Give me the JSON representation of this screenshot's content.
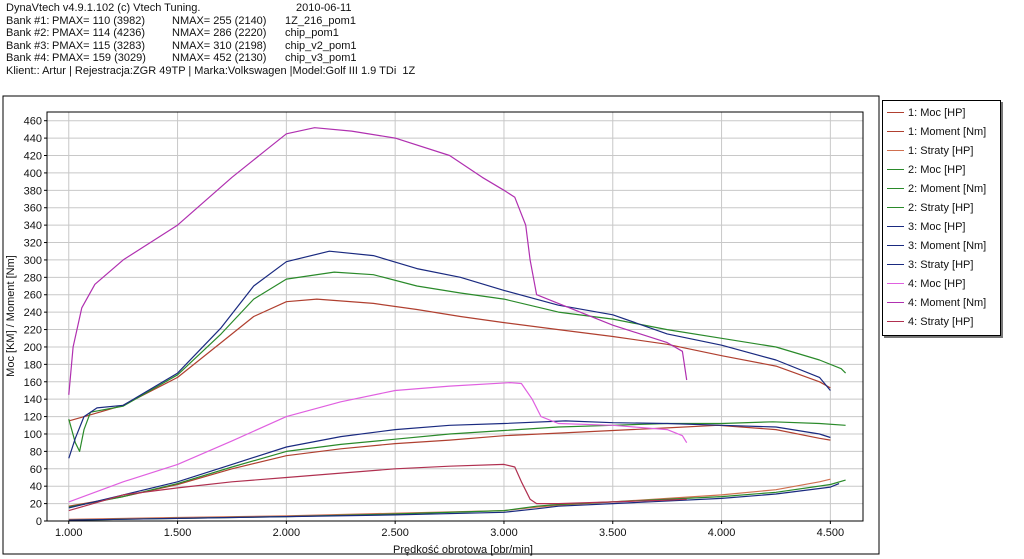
{
  "header": {
    "app": "DynaVtech v4.9.1.102 (c) Vtech Tuning.",
    "date": "2010-06-11",
    "banks": [
      {
        "bank": "Bank #1:",
        "pmax": "PMAX= 110 (3982)",
        "nmax": "NMAX= 255 (2140)",
        "file": "1Z_216_pom1"
      },
      {
        "bank": "Bank #2:",
        "pmax": "PMAX= 114 (4236)",
        "nmax": "NMAX= 286 (2220)",
        "file": "chip_pom1"
      },
      {
        "bank": "Bank #3:",
        "pmax": "PMAX= 115 (3283)",
        "nmax": "NMAX= 310 (2198)",
        "file": "chip_v2_pom1"
      },
      {
        "bank": "Bank #4:",
        "pmax": "PMAX= 159 (3029)",
        "nmax": "NMAX= 452 (2130)",
        "file": "chip_v3_pom1"
      }
    ],
    "client": "Klient:: Artur | Rejestracja:ZGR 49TP | Marka:Volkswagen |Model:Golf III 1.9 TDi  1Z"
  },
  "legend": [
    {
      "label": "1: Moc [HP]",
      "color": "#b04030"
    },
    {
      "label": "1: Moment [Nm]",
      "color": "#b04030"
    },
    {
      "label": "1: Straty [HP]",
      "color": "#d07050"
    },
    {
      "label": "2: Moc [HP]",
      "color": "#2a8a2a"
    },
    {
      "label": "2: Moment [Nm]",
      "color": "#2a8a2a"
    },
    {
      "label": "2: Straty [HP]",
      "color": "#2a8a2a"
    },
    {
      "label": "3: Moc [HP]",
      "color": "#1a2a80"
    },
    {
      "label": "3: Moment [Nm]",
      "color": "#1a2a80"
    },
    {
      "label": "3: Straty [HP]",
      "color": "#1a2a80"
    },
    {
      "label": "4: Moc [HP]",
      "color": "#e060e0"
    },
    {
      "label": "4: Moment [Nm]",
      "color": "#b030b0"
    },
    {
      "label": "4: Straty [HP]",
      "color": "#b03050"
    }
  ],
  "chart_data": {
    "type": "line",
    "xlabel": "Prędkość obrotowa [obr/min]",
    "ylabel": "Moc [KM] / Moment [Nm]",
    "xlim": [
      900,
      4650
    ],
    "ylim": [
      0,
      470
    ],
    "xticks": [
      1000,
      1500,
      2000,
      2500,
      3000,
      3500,
      4000,
      4500
    ],
    "xtick_labels": [
      "1.000",
      "1.500",
      "2.000",
      "2.500",
      "3.000",
      "3.500",
      "4.000",
      "4.500"
    ],
    "yticks": [
      0,
      20,
      40,
      60,
      80,
      100,
      120,
      140,
      160,
      180,
      200,
      220,
      240,
      260,
      280,
      300,
      320,
      340,
      360,
      380,
      400,
      420,
      440,
      460
    ],
    "grid": true,
    "legend_position": "right",
    "series": [
      {
        "name": "1: Moc [HP]",
        "color": "#b04030",
        "points": [
          [
            1000,
            17
          ],
          [
            1250,
            28
          ],
          [
            1500,
            42
          ],
          [
            1750,
            60
          ],
          [
            2000,
            75
          ],
          [
            2250,
            83
          ],
          [
            2500,
            89
          ],
          [
            2750,
            93
          ],
          [
            3000,
            98
          ],
          [
            3250,
            101
          ],
          [
            3500,
            104
          ],
          [
            3750,
            107
          ],
          [
            3982,
            110
          ],
          [
            4250,
            105
          ],
          [
            4450,
            95
          ],
          [
            4500,
            93
          ]
        ]
      },
      {
        "name": "1: Moment [Nm]",
        "color": "#b04030",
        "points": [
          [
            1000,
            115
          ],
          [
            1100,
            122
          ],
          [
            1250,
            133
          ],
          [
            1500,
            165
          ],
          [
            1700,
            205
          ],
          [
            1850,
            235
          ],
          [
            2000,
            252
          ],
          [
            2140,
            255
          ],
          [
            2400,
            250
          ],
          [
            2600,
            243
          ],
          [
            2800,
            235
          ],
          [
            3000,
            228
          ],
          [
            3250,
            220
          ],
          [
            3500,
            212
          ],
          [
            3750,
            203
          ],
          [
            4000,
            190
          ],
          [
            4250,
            178
          ],
          [
            4450,
            160
          ],
          [
            4500,
            153
          ]
        ]
      },
      {
        "name": "1: Straty [HP]",
        "color": "#d07050",
        "points": [
          [
            1000,
            2
          ],
          [
            1500,
            4
          ],
          [
            2000,
            6
          ],
          [
            2500,
            9
          ],
          [
            3000,
            12
          ],
          [
            3150,
            16
          ],
          [
            3250,
            18
          ],
          [
            3500,
            22
          ],
          [
            4000,
            30
          ],
          [
            4250,
            36
          ],
          [
            4450,
            45
          ],
          [
            4500,
            48
          ]
        ]
      },
      {
        "name": "2: Moc [HP]",
        "color": "#2a8a2a",
        "points": [
          [
            1000,
            16
          ],
          [
            1250,
            28
          ],
          [
            1500,
            43
          ],
          [
            1750,
            62
          ],
          [
            2000,
            80
          ],
          [
            2250,
            88
          ],
          [
            2500,
            94
          ],
          [
            2750,
            100
          ],
          [
            3000,
            104
          ],
          [
            3250,
            108
          ],
          [
            3500,
            110
          ],
          [
            3750,
            112
          ],
          [
            4000,
            112
          ],
          [
            4236,
            114
          ],
          [
            4450,
            112
          ],
          [
            4570,
            110
          ]
        ]
      },
      {
        "name": "2: Moment [Nm]",
        "color": "#2a8a2a",
        "points": [
          [
            1000,
            117
          ],
          [
            1030,
            90
          ],
          [
            1050,
            80
          ],
          [
            1070,
            105
          ],
          [
            1100,
            125
          ],
          [
            1250,
            132
          ],
          [
            1500,
            168
          ],
          [
            1700,
            215
          ],
          [
            1850,
            255
          ],
          [
            2000,
            278
          ],
          [
            2220,
            286
          ],
          [
            2400,
            283
          ],
          [
            2600,
            270
          ],
          [
            2800,
            262
          ],
          [
            3000,
            255
          ],
          [
            3250,
            240
          ],
          [
            3500,
            232
          ],
          [
            3750,
            220
          ],
          [
            4000,
            210
          ],
          [
            4250,
            200
          ],
          [
            4450,
            185
          ],
          [
            4550,
            175
          ],
          [
            4570,
            170
          ]
        ]
      },
      {
        "name": "2: Straty [HP]",
        "color": "#2a8a2a",
        "points": [
          [
            1000,
            1
          ],
          [
            1500,
            3
          ],
          [
            2000,
            5
          ],
          [
            2500,
            8
          ],
          [
            3000,
            12
          ],
          [
            3150,
            17
          ],
          [
            3250,
            19
          ],
          [
            3500,
            22
          ],
          [
            4000,
            28
          ],
          [
            4250,
            33
          ],
          [
            4500,
            42
          ],
          [
            4570,
            47
          ]
        ]
      },
      {
        "name": "3: Moc [HP]",
        "color": "#1a2a80",
        "points": [
          [
            1000,
            15
          ],
          [
            1250,
            30
          ],
          [
            1500,
            45
          ],
          [
            1750,
            65
          ],
          [
            2000,
            85
          ],
          [
            2250,
            97
          ],
          [
            2500,
            105
          ],
          [
            2750,
            110
          ],
          [
            3000,
            112
          ],
          [
            3283,
            115
          ],
          [
            3500,
            113
          ],
          [
            3750,
            112
          ],
          [
            4000,
            110
          ],
          [
            4250,
            108
          ],
          [
            4450,
            100
          ],
          [
            4500,
            96
          ]
        ]
      },
      {
        "name": "3: Moment [Nm]",
        "color": "#1a2a80",
        "points": [
          [
            1000,
            72
          ],
          [
            1030,
            95
          ],
          [
            1070,
            120
          ],
          [
            1130,
            130
          ],
          [
            1250,
            133
          ],
          [
            1500,
            170
          ],
          [
            1700,
            222
          ],
          [
            1850,
            270
          ],
          [
            2000,
            298
          ],
          [
            2198,
            310
          ],
          [
            2400,
            305
          ],
          [
            2600,
            290
          ],
          [
            2800,
            280
          ],
          [
            3000,
            265
          ],
          [
            3250,
            248
          ],
          [
            3500,
            237
          ],
          [
            3750,
            215
          ],
          [
            4000,
            202
          ],
          [
            4250,
            185
          ],
          [
            4450,
            165
          ],
          [
            4500,
            150
          ]
        ]
      },
      {
        "name": "3: Straty [HP]",
        "color": "#1a2a80",
        "points": [
          [
            1000,
            1
          ],
          [
            1500,
            3
          ],
          [
            2000,
            5
          ],
          [
            2500,
            7
          ],
          [
            3000,
            10
          ],
          [
            3150,
            14
          ],
          [
            3250,
            17
          ],
          [
            3500,
            20
          ],
          [
            4000,
            26
          ],
          [
            4250,
            31
          ],
          [
            4500,
            39
          ],
          [
            4540,
            43
          ]
        ]
      },
      {
        "name": "4: Moc [HP]",
        "color": "#e060e0",
        "points": [
          [
            1000,
            22
          ],
          [
            1250,
            45
          ],
          [
            1500,
            65
          ],
          [
            1750,
            92
          ],
          [
            2000,
            120
          ],
          [
            2250,
            137
          ],
          [
            2500,
            150
          ],
          [
            2750,
            155
          ],
          [
            3029,
            159
          ],
          [
            3080,
            158
          ],
          [
            3130,
            140
          ],
          [
            3170,
            120
          ],
          [
            3250,
            112
          ],
          [
            3500,
            110
          ],
          [
            3750,
            105
          ],
          [
            3820,
            98
          ],
          [
            3840,
            90
          ]
        ]
      },
      {
        "name": "4: Moment [Nm]",
        "color": "#b030b0",
        "points": [
          [
            1000,
            145
          ],
          [
            1020,
            200
          ],
          [
            1060,
            245
          ],
          [
            1120,
            272
          ],
          [
            1250,
            300
          ],
          [
            1500,
            340
          ],
          [
            1750,
            395
          ],
          [
            1900,
            425
          ],
          [
            2000,
            445
          ],
          [
            2130,
            452
          ],
          [
            2300,
            448
          ],
          [
            2500,
            440
          ],
          [
            2750,
            420
          ],
          [
            2900,
            395
          ],
          [
            3000,
            380
          ],
          [
            3050,
            372
          ],
          [
            3100,
            340
          ],
          [
            3120,
            300
          ],
          [
            3150,
            260
          ],
          [
            3250,
            250
          ],
          [
            3500,
            225
          ],
          [
            3750,
            205
          ],
          [
            3820,
            195
          ],
          [
            3840,
            162
          ]
        ]
      },
      {
        "name": "4: Straty [HP]",
        "color": "#b03050",
        "points": [
          [
            1000,
            12
          ],
          [
            1250,
            30
          ],
          [
            1500,
            38
          ],
          [
            1750,
            45
          ],
          [
            2000,
            50
          ],
          [
            2250,
            55
          ],
          [
            2500,
            60
          ],
          [
            2750,
            63
          ],
          [
            3000,
            65
          ],
          [
            3050,
            62
          ],
          [
            3080,
            45
          ],
          [
            3120,
            25
          ],
          [
            3150,
            20
          ],
          [
            3250,
            20
          ],
          [
            3500,
            22
          ],
          [
            3750,
            24
          ],
          [
            3840,
            25
          ]
        ]
      }
    ]
  }
}
